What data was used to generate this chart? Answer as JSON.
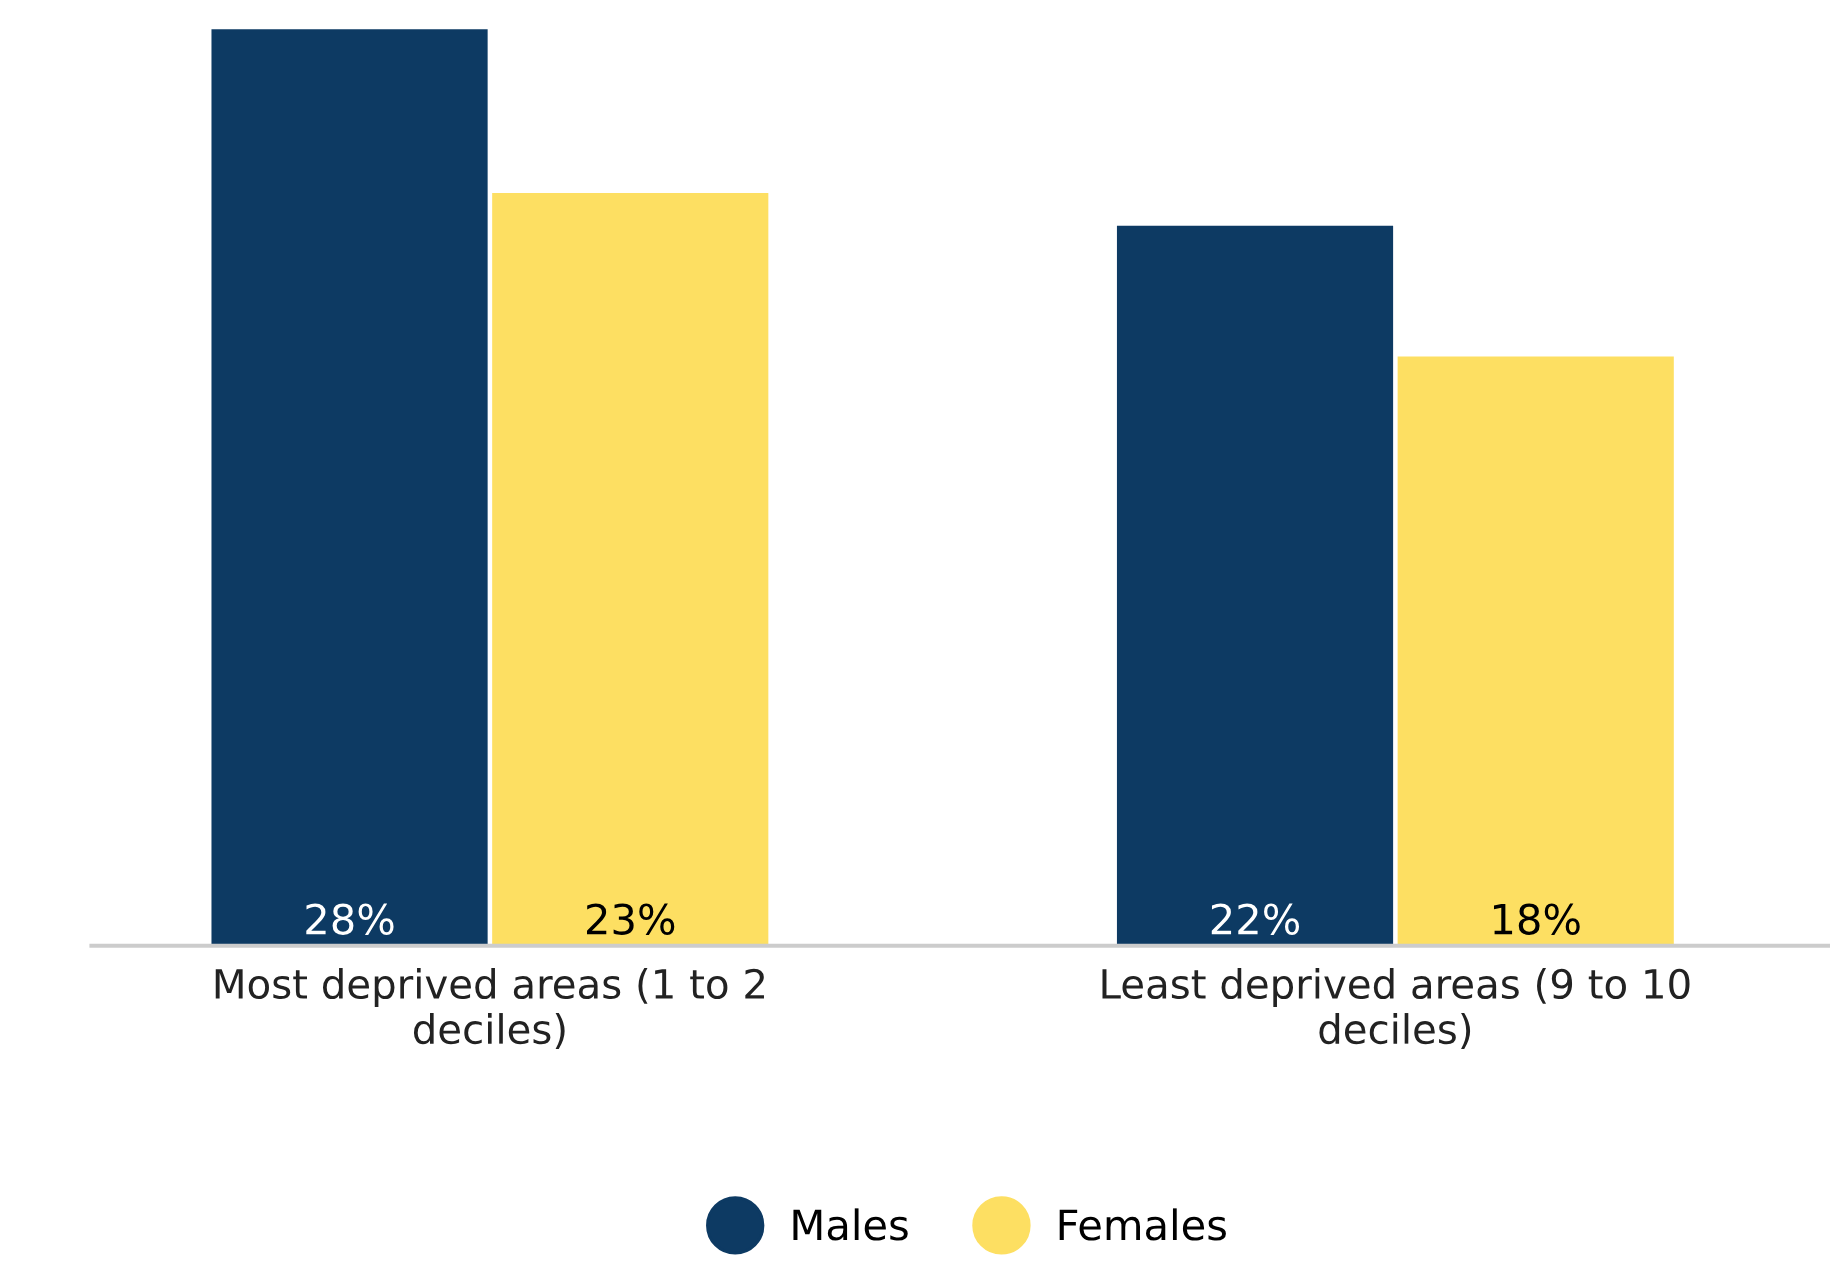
{
  "chart_data": {
    "type": "bar",
    "categories": [
      "Most deprived areas (1 to 2 deciles)",
      "Least deprived areas (9 to 10 deciles)"
    ],
    "series": [
      {
        "name": "Males",
        "color": "#0d3a63",
        "values": [
          28,
          22
        ],
        "value_labels": [
          "28%",
          "22%"
        ]
      },
      {
        "name": "Females",
        "color": "#fddf62",
        "values": [
          23,
          18
        ],
        "value_labels": [
          "23%",
          "18%"
        ]
      }
    ],
    "legend": "bottom",
    "grid": false
  }
}
